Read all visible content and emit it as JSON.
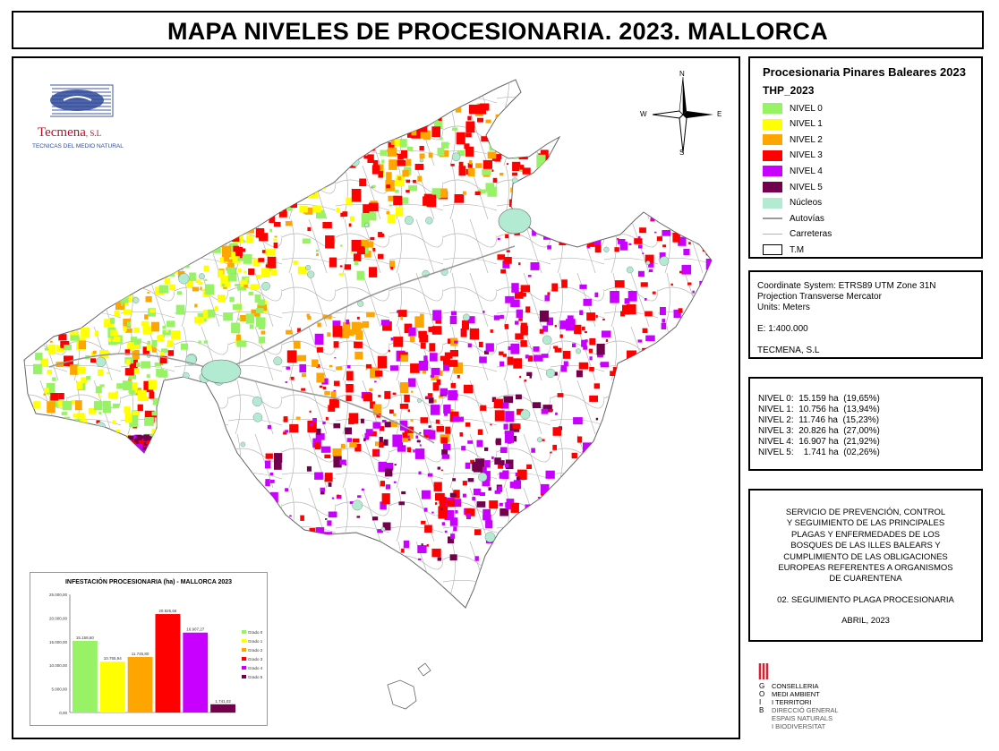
{
  "title": "MAPA NIVELES DE PROCESIONARIA. 2023. MALLORCA",
  "logo": {
    "company": "Tecmena",
    "company_suffix": ", S.L",
    "tagline": "TECNICAS DEL MEDIO NATURAL"
  },
  "compass": {
    "n": "N",
    "s": "S",
    "e": "E",
    "w": "W"
  },
  "legend": {
    "title": "Procesionaria Pinares Baleares 2023",
    "subtitle": "THP_2023",
    "items": [
      {
        "label": "NIVEL 0",
        "color": "#98f266",
        "kind": "fill"
      },
      {
        "label": "NIVEL 1",
        "color": "#ffff00",
        "kind": "fill"
      },
      {
        "label": "NIVEL 2",
        "color": "#ffa500",
        "kind": "fill"
      },
      {
        "label": "NIVEL 3",
        "color": "#ff0000",
        "kind": "fill"
      },
      {
        "label": "NIVEL 4",
        "color": "#c800ff",
        "kind": "fill"
      },
      {
        "label": "NIVEL 5",
        "color": "#73004c",
        "kind": "fill"
      },
      {
        "label": "Núcleos",
        "color": "#b3ebd2",
        "kind": "fill"
      },
      {
        "label": "Autovías",
        "color": "#9a9a9a",
        "kind": "line"
      },
      {
        "label": "Carreteras",
        "color": "#b5b5b5",
        "kind": "thinline"
      },
      {
        "label": "T.M",
        "color": "#ffffff",
        "kind": "outline"
      }
    ]
  },
  "coords": {
    "system": "Coordinate System: ETRS89 UTM Zone 31N",
    "projection": "Projection Transverse Mercator",
    "units": "Units: Meters",
    "scale": "E: 1:400.000",
    "author": "TECMENA, S.L"
  },
  "stats": [
    "NIVEL 0:  15.159 ha  (19,65%)",
    "NIVEL 1:  10.756 ha  (13,94%)",
    "NIVEL 2:  11.746 ha  (15,23%)",
    "NIVEL 3:  20.826 ha  (27,00%)",
    "NIVEL 4:  16.907 ha  (21,92%)",
    "NIVEL 5:    1.741 ha  (02,26%)"
  ],
  "service": {
    "text": "SERVICIO DE PREVENCIÓN, CONTROL\nY SEGUIMIENTO DE LAS PRINCIPALES\nPLAGAS Y ENFERMEDADES DE LOS\nBOSQUES DE LAS ILLES BALEARS Y\nCUMPLIMIENTO DE LAS OBLIGACIONES\nEUROPEAS REFERENTES A ORGANISMOS\nDE CUARENTENA",
    "sub": "02. SEGUIMIENTO PLAGA PROCESIONARIA",
    "date": "ABRIL, 2023"
  },
  "gov": {
    "letters": [
      "G",
      "O",
      "I",
      "B"
    ],
    "lines": [
      "CONSELLERIA",
      "MEDI AMBIENT",
      "I TERRITORI",
      "DIRECCIÓ GENERAL",
      "ESPAIS NATURALS",
      "I BIODIVERSITAT"
    ]
  },
  "chart_data": {
    "type": "bar",
    "title": "INFESTACIÓN PROCESIONARIA (ha) - MALLORCA 2023",
    "categories": [
      "Grado 0",
      "Grado 1",
      "Grado 2",
      "Grado 3",
      "Grado 4",
      "Grado 5"
    ],
    "values": [
      15158.6,
      10755.94,
      11745.8,
      20825.66,
      16907.27,
      1741.02
    ],
    "value_labels": [
      "15.158,60",
      "10.755,94",
      "11.745,80",
      "20.825,66",
      "16.907,27",
      "1.741,02"
    ],
    "colors": [
      "#98f266",
      "#ffff00",
      "#ffa500",
      "#ff0000",
      "#c800ff",
      "#73004c"
    ],
    "y_ticks": [
      0,
      5000,
      10000,
      15000,
      20000,
      25000
    ],
    "y_tick_labels": [
      "0,00",
      "5.000,00",
      "10.000,00",
      "15.000,00",
      "20.000,00",
      "25.000,00"
    ],
    "ylim": [
      0,
      25000
    ],
    "legend_position": "right"
  }
}
